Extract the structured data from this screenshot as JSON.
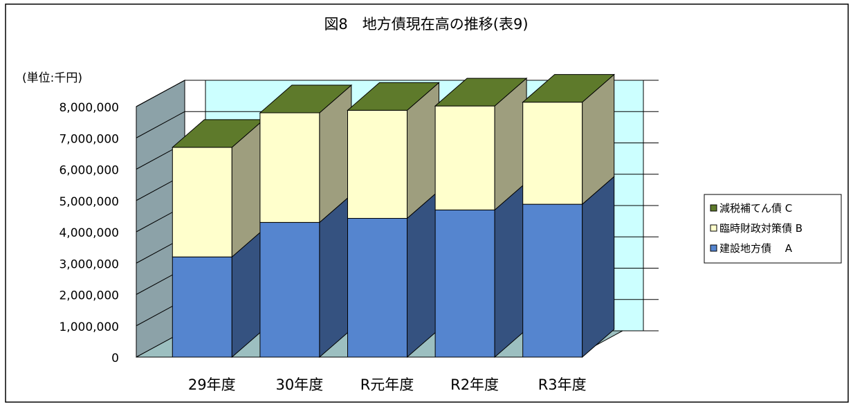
{
  "chart_data": {
    "type": "bar",
    "stacked": true,
    "three_d": true,
    "title": "図8　地方債現在高の推移(表9)",
    "unit_label": "(単位:千円)",
    "categories": [
      "29年度",
      "30年度",
      "R元年度",
      "R2年度",
      "R3年度"
    ],
    "series": [
      {
        "name": "建設地方債　 A",
        "values": [
          3200000,
          4300000,
          4430000,
          4700000,
          4880000
        ],
        "color": "#5585CF"
      },
      {
        "name": "臨時財政対策債 B",
        "values": [
          3500000,
          3500000,
          3450000,
          3320000,
          3260000
        ],
        "color": "#FFFFCC"
      },
      {
        "name": "減税補てん債 C",
        "values": [
          0,
          0,
          0,
          0,
          0
        ],
        "color": "#5E7A2B"
      }
    ],
    "ylim": [
      0,
      8000000
    ],
    "yticks": [
      0,
      1000000,
      2000000,
      3000000,
      4000000,
      5000000,
      6000000,
      7000000,
      8000000
    ],
    "ytick_labels": [
      "0",
      "1,000,000",
      "2,000,000",
      "3,000,000",
      "4,000,000",
      "5,000,000",
      "6,000,000",
      "7,000,000",
      "8,000,000"
    ],
    "legend_position": "right",
    "grid": true,
    "colors": {
      "back_wall": "#CCFFFF",
      "side_wall": "#8CA2A8",
      "floor": "#9CBFC0",
      "gridline": "#000000"
    }
  }
}
